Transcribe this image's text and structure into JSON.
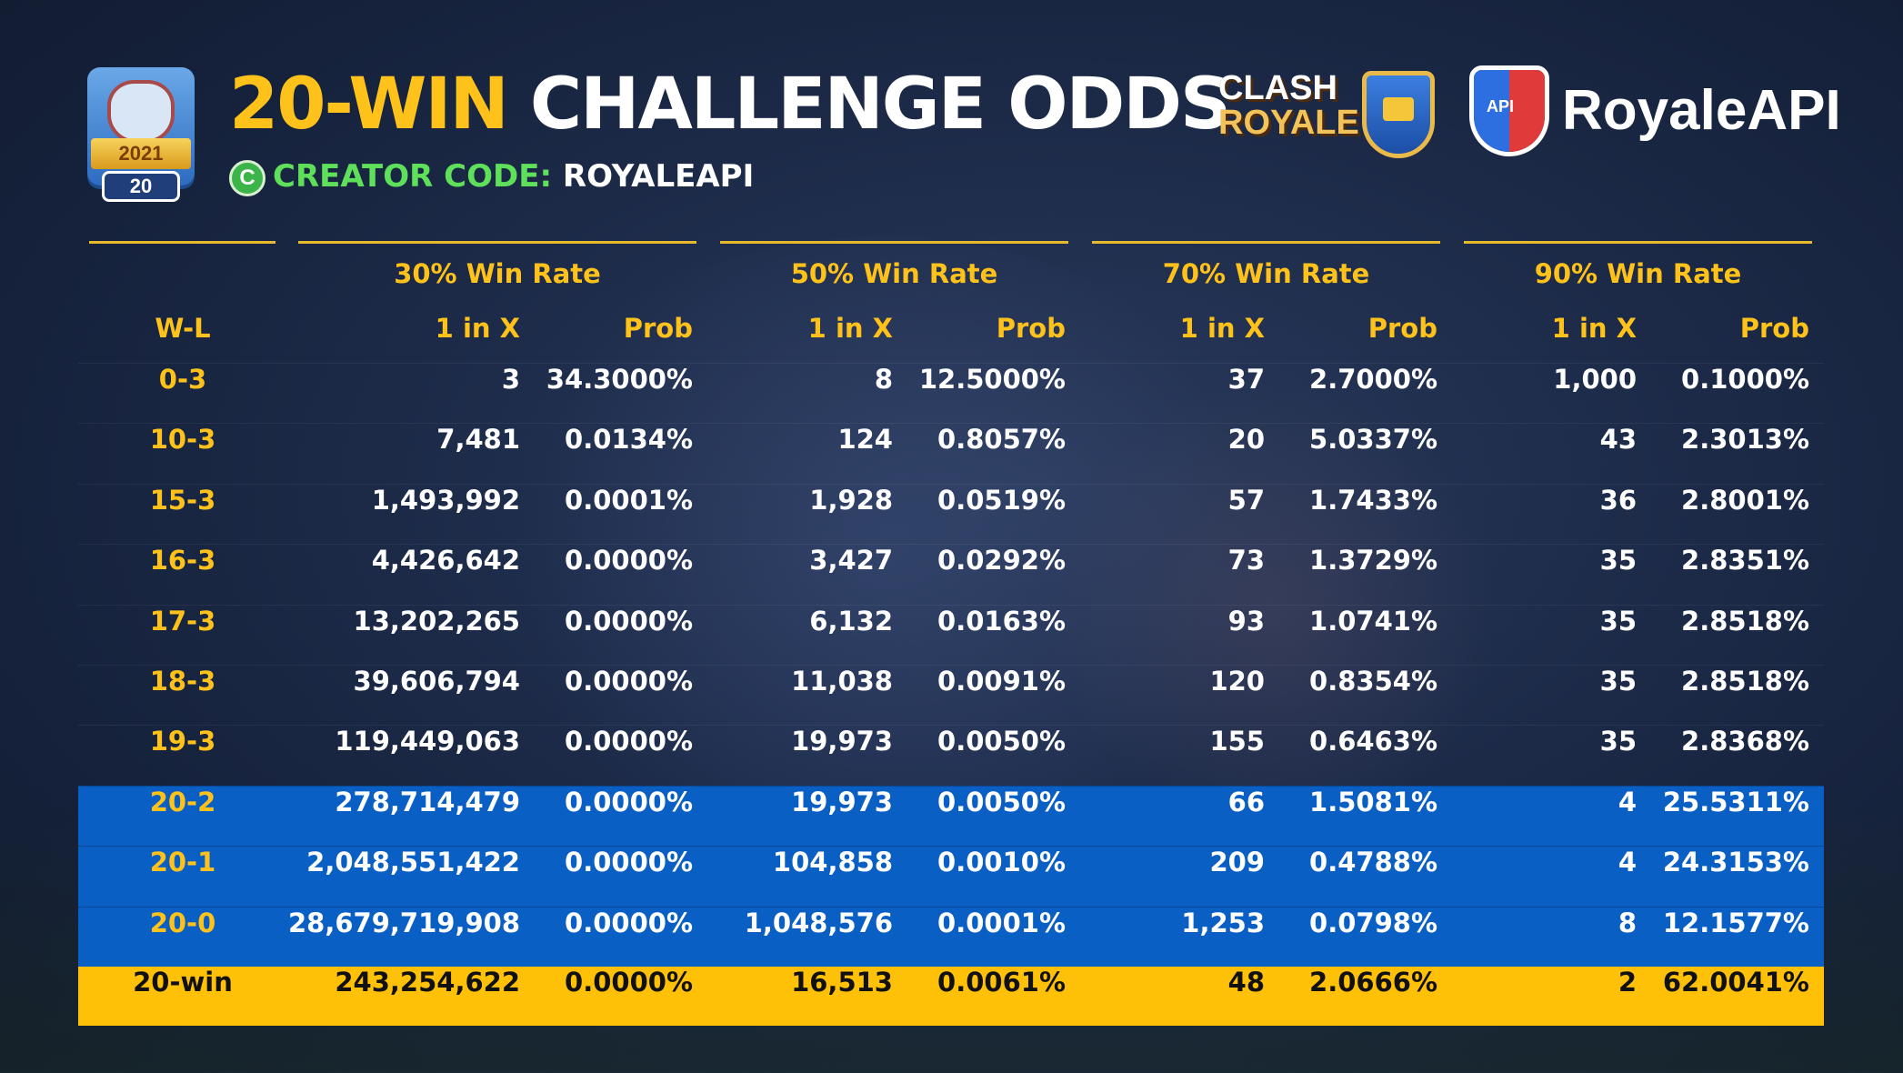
{
  "header": {
    "title_highlight": "20-WIN",
    "title_rest": "CHALLENGE ODDS",
    "badge_year": "2021",
    "badge_number": "20",
    "creator_label": "CREATOR CODE:",
    "creator_value": "ROYALEAPI",
    "coin_glyph": "C",
    "clash_logo_line1": "CLASH",
    "clash_logo_line2": "ROYALE",
    "brand_badge_text": "API",
    "brand_name": "RoyaleAPI"
  },
  "colors": {
    "accent_gold": "#ffc21a",
    "row_blue": "#0a5fc4",
    "row_gold": "#ffc107",
    "creator_green": "#5fe05a"
  },
  "table": {
    "wl_header": "W-L",
    "groups": [
      {
        "label": "30% Win Rate",
        "col1": "1 in X",
        "col2": "Prob"
      },
      {
        "label": "50% Win Rate",
        "col1": "1 in X",
        "col2": "Prob"
      },
      {
        "label": "70% Win Rate",
        "col1": "1 in X",
        "col2": "Prob"
      },
      {
        "label": "90% Win Rate",
        "col1": "1 in X",
        "col2": "Prob"
      }
    ],
    "rows": [
      {
        "wl": "0-3",
        "style": "plain",
        "v": [
          "3",
          "34.3000%",
          "8",
          "12.5000%",
          "37",
          "2.7000%",
          "1,000",
          "0.1000%"
        ]
      },
      {
        "wl": "10-3",
        "style": "plain",
        "v": [
          "7,481",
          "0.0134%",
          "124",
          "0.8057%",
          "20",
          "5.0337%",
          "43",
          "2.3013%"
        ]
      },
      {
        "wl": "15-3",
        "style": "plain",
        "v": [
          "1,493,992",
          "0.0001%",
          "1,928",
          "0.0519%",
          "57",
          "1.7433%",
          "36",
          "2.8001%"
        ]
      },
      {
        "wl": "16-3",
        "style": "plain",
        "v": [
          "4,426,642",
          "0.0000%",
          "3,427",
          "0.0292%",
          "73",
          "1.3729%",
          "35",
          "2.8351%"
        ]
      },
      {
        "wl": "17-3",
        "style": "plain",
        "v": [
          "13,202,265",
          "0.0000%",
          "6,132",
          "0.0163%",
          "93",
          "1.0741%",
          "35",
          "2.8518%"
        ]
      },
      {
        "wl": "18-3",
        "style": "plain",
        "v": [
          "39,606,794",
          "0.0000%",
          "11,038",
          "0.0091%",
          "120",
          "0.8354%",
          "35",
          "2.8518%"
        ]
      },
      {
        "wl": "19-3",
        "style": "plain",
        "v": [
          "119,449,063",
          "0.0000%",
          "19,973",
          "0.0050%",
          "155",
          "0.6463%",
          "35",
          "2.8368%"
        ]
      },
      {
        "wl": "20-2",
        "style": "blue",
        "v": [
          "278,714,479",
          "0.0000%",
          "19,973",
          "0.0050%",
          "66",
          "1.5081%",
          "4",
          "25.5311%"
        ]
      },
      {
        "wl": "20-1",
        "style": "blue",
        "v": [
          "2,048,551,422",
          "0.0000%",
          "104,858",
          "0.0010%",
          "209",
          "0.4788%",
          "4",
          "24.3153%"
        ]
      },
      {
        "wl": "20-0",
        "style": "blue",
        "v": [
          "28,679,719,908",
          "0.0000%",
          "1,048,576",
          "0.0001%",
          "1,253",
          "0.0798%",
          "8",
          "12.1577%"
        ]
      },
      {
        "wl": "20-win",
        "style": "gold",
        "v": [
          "243,254,622",
          "0.0000%",
          "16,513",
          "0.0061%",
          "48",
          "2.0666%",
          "2",
          "62.0041%"
        ]
      }
    ]
  }
}
